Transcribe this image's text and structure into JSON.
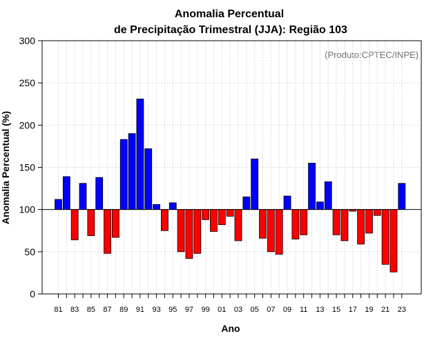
{
  "chart_data": {
    "type": "bar",
    "title_line1": "Anomalia Percentual",
    "title_line2": "de Precipitação Trimestral (JJA): Região 103",
    "xlabel": "Ano",
    "ylabel": "Anomalia Percentual (%)",
    "credit": "(Produto:CPTEC/INPE)",
    "baseline": 100,
    "ylim": [
      0,
      300
    ],
    "yticks": [
      0,
      50,
      100,
      150,
      200,
      250,
      300
    ],
    "years": [
      1981,
      1982,
      1983,
      1984,
      1985,
      1986,
      1987,
      1988,
      1989,
      1990,
      1991,
      1992,
      1993,
      1994,
      1995,
      1996,
      1997,
      1998,
      1999,
      2000,
      2001,
      2002,
      2003,
      2004,
      2005,
      2006,
      2007,
      2008,
      2009,
      2010,
      2011,
      2012,
      2013,
      2014,
      2015,
      2016,
      2017,
      2018,
      2019,
      2020,
      2021,
      2022,
      2023
    ],
    "values": [
      112,
      139,
      64,
      131,
      69,
      138,
      48,
      67,
      183,
      190,
      231,
      172,
      106,
      75,
      108,
      50,
      42,
      48,
      88,
      74,
      82,
      92,
      63,
      115,
      160,
      66,
      50,
      47,
      116,
      65,
      70,
      155,
      109,
      133,
      70,
      63,
      98,
      59,
      72,
      93,
      35,
      26,
      131
    ],
    "tick_labels": [
      "81",
      "83",
      "85",
      "87",
      "89",
      "91",
      "93",
      "95",
      "97",
      "99",
      "01",
      "03",
      "05",
      "07",
      "09",
      "11",
      "13",
      "15",
      "17",
      "19",
      "21",
      "23"
    ],
    "colors": {
      "above": "#0000ff",
      "below": "#ff0000",
      "grid": "#d8d8d8"
    }
  }
}
